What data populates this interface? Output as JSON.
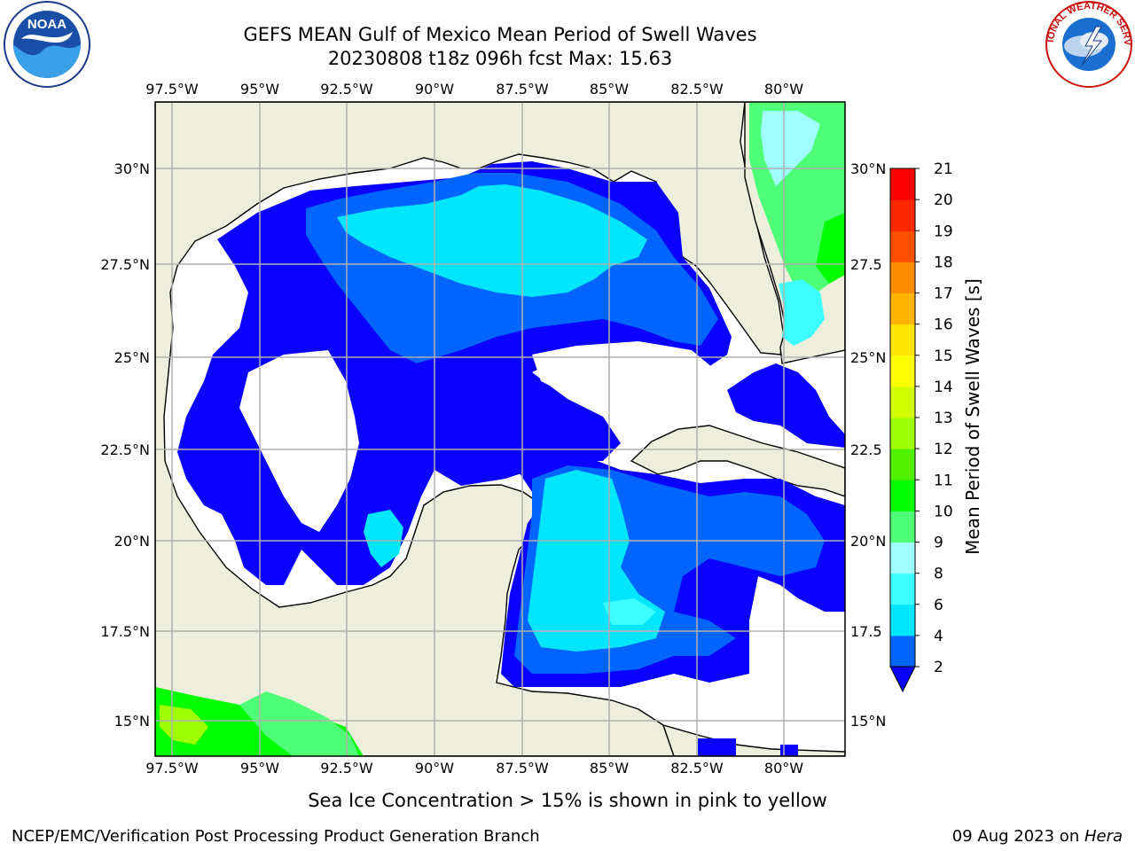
{
  "title": {
    "line1": "GEFS MEAN Gulf of Mexico Mean Period of Swell Waves",
    "line2": "20230808 t18z 096h fcst   Max: 15.63"
  },
  "map": {
    "lon_ticks": [
      "97.5°W",
      "95°W",
      "92.5°W",
      "90°W",
      "87.5°W",
      "85°W",
      "82.5°W",
      "80°W"
    ],
    "lat_ticks_left": [
      "30°N",
      "27.5°N",
      "25°N",
      "22.5°N",
      "20°N",
      "17.5°N",
      "15°N"
    ],
    "lat_ticks_right": [
      "30°N",
      "27.5",
      "25°N",
      "22.5",
      "20°N",
      "17.5",
      "15°N"
    ],
    "land_color": "#eeeedd",
    "water_color": "#ffffff"
  },
  "colorbar": {
    "label": "Mean Period of Swell Waves [s]",
    "ticks": [
      "2",
      "4",
      "6",
      "8",
      "9",
      "10",
      "11",
      "12",
      "13",
      "14",
      "15",
      "16",
      "17",
      "18",
      "19",
      "20",
      "21"
    ],
    "colors": [
      "#0a00ff",
      "#0064ff",
      "#00e6ff",
      "#3cffff",
      "#a0ffff",
      "#50ff78",
      "#00ff00",
      "#50f000",
      "#a0ff00",
      "#d2ff00",
      "#ffff00",
      "#ffe600",
      "#ffb400",
      "#ff8c00",
      "#ff5000",
      "#ff2800",
      "#ff0000"
    ]
  },
  "subnote": "Sea Ice Concentration > 15% is shown in pink to yellow",
  "footer": {
    "left": "NCEP/EMC/Verification Post Processing Product Generation Branch",
    "right_date": "09 Aug 2023 on ",
    "right_host": "Hera"
  },
  "logos": {
    "left_text": "NOAA",
    "right_text": "NATIONAL WEATHER SERVICE"
  }
}
